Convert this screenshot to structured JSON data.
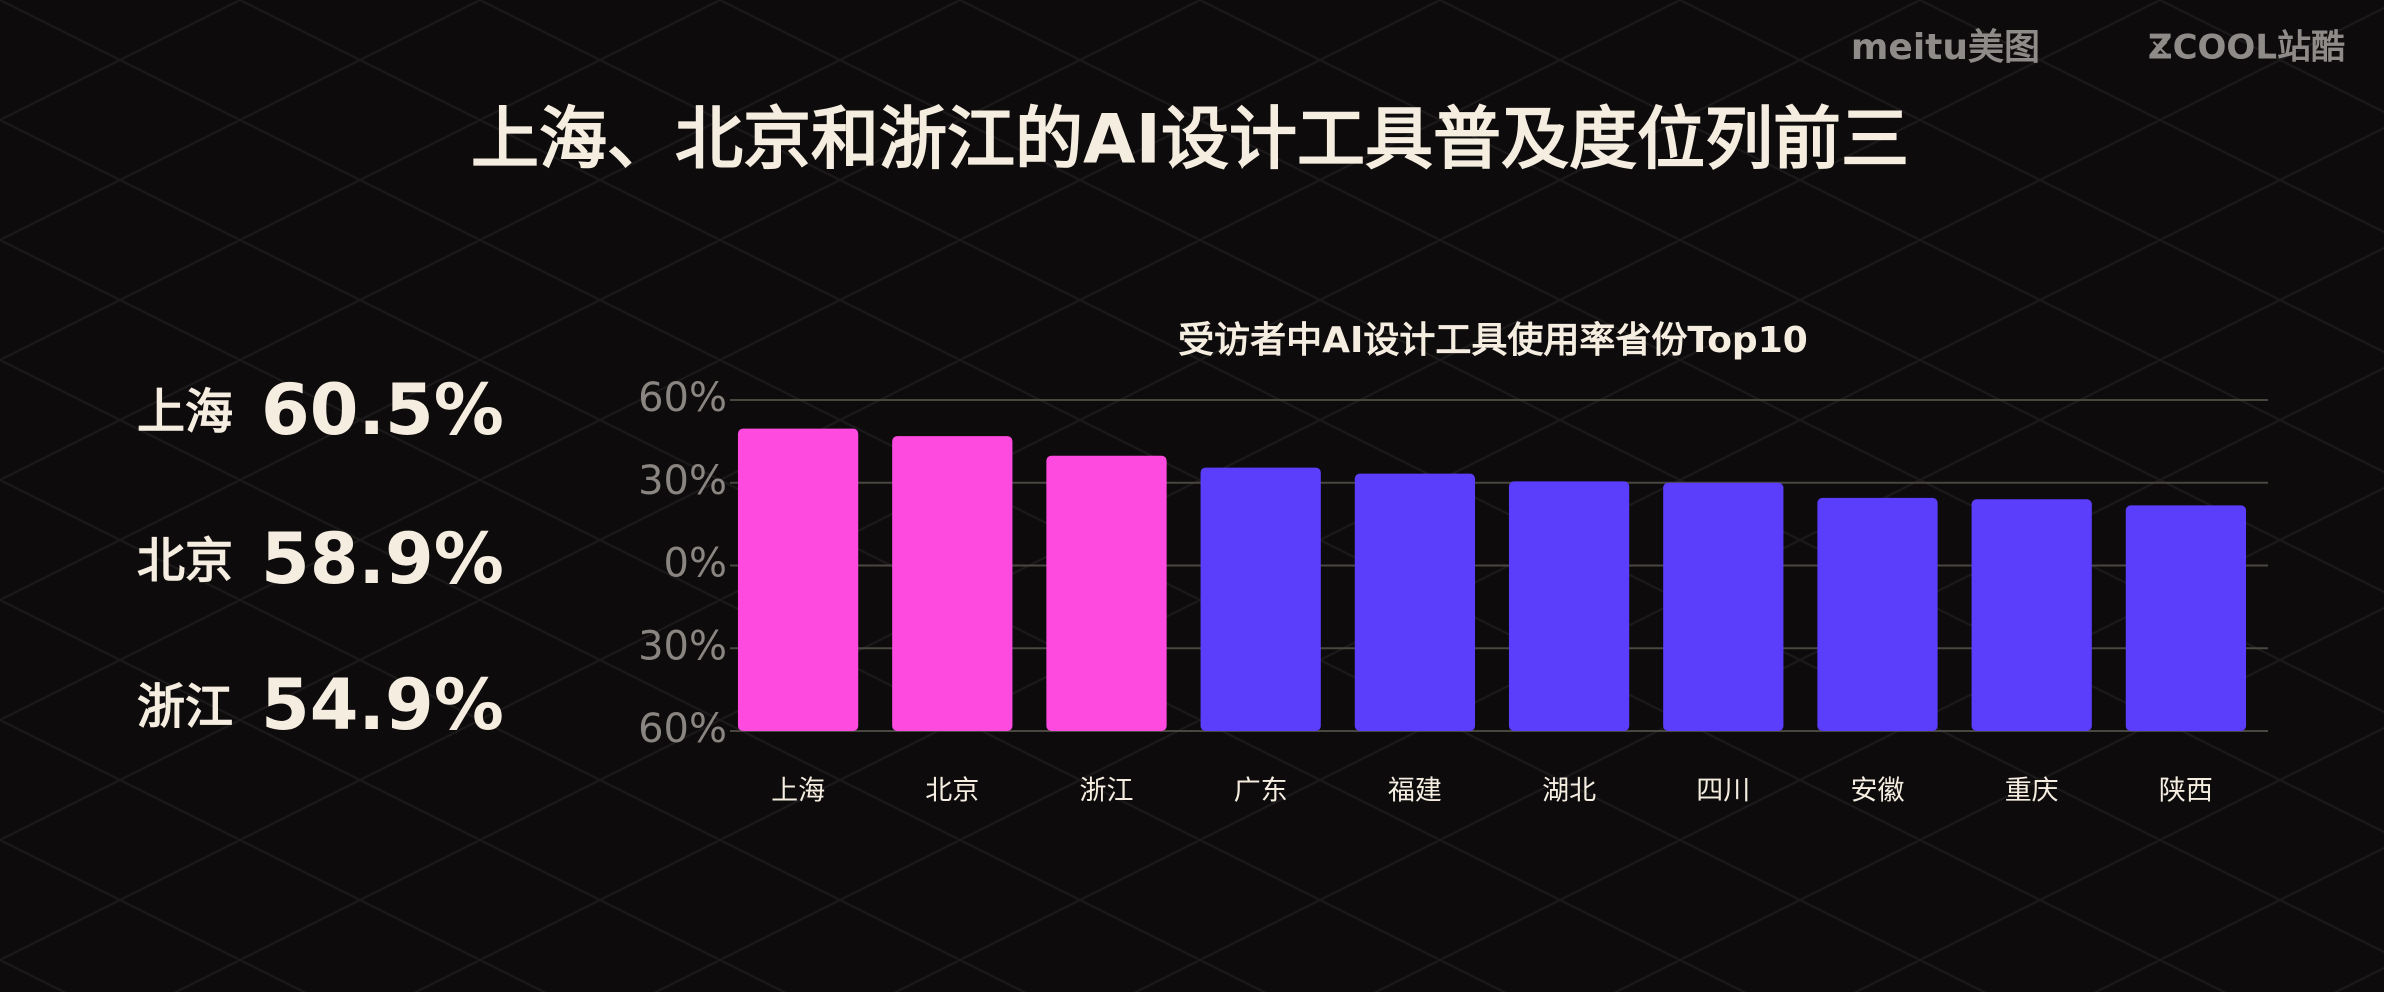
{
  "header": {
    "logo": "meitu美图",
    "separator": "×",
    "partner": "ZCOOL站酷",
    "title": "上海、北京和浙江的AI设计工具普及度位列前三"
  },
  "highlights": [
    {
      "region": "上海",
      "value": "60.5%"
    },
    {
      "region": "北京",
      "value": "58.9%"
    },
    {
      "region": "浙江",
      "value": "54.9%"
    }
  ],
  "chart_data": {
    "type": "bar",
    "title": "受访者中AI设计工具使用率省份Top10",
    "categories": [
      "上海",
      "北京",
      "浙江",
      "广东",
      "福建",
      "湖北",
      "四川",
      "安徽",
      "重庆",
      "陕西"
    ],
    "values": [
      49.6,
      46.9,
      39.8,
      35.5,
      33.3,
      30.5,
      30,
      24.5,
      24,
      21.8
    ],
    "colors": [
      "#ff4ae0",
      "#ff4ae0",
      "#ff4ae0",
      "#5b3dfc",
      "#5b3dfc",
      "#5b3dfc",
      "#5b3dfc",
      "#5b3dfc",
      "#5b3dfc",
      "#5b3dfc"
    ],
    "ylim": [
      -60,
      60
    ],
    "yticks": [
      {
        "value": 60,
        "label": "60%"
      },
      {
        "value": 30,
        "label": "30%"
      },
      {
        "value": 0,
        "label": "0%"
      },
      {
        "value": -30,
        "label": "30%"
      },
      {
        "value": -60,
        "label": "60%"
      }
    ],
    "grid": true
  }
}
